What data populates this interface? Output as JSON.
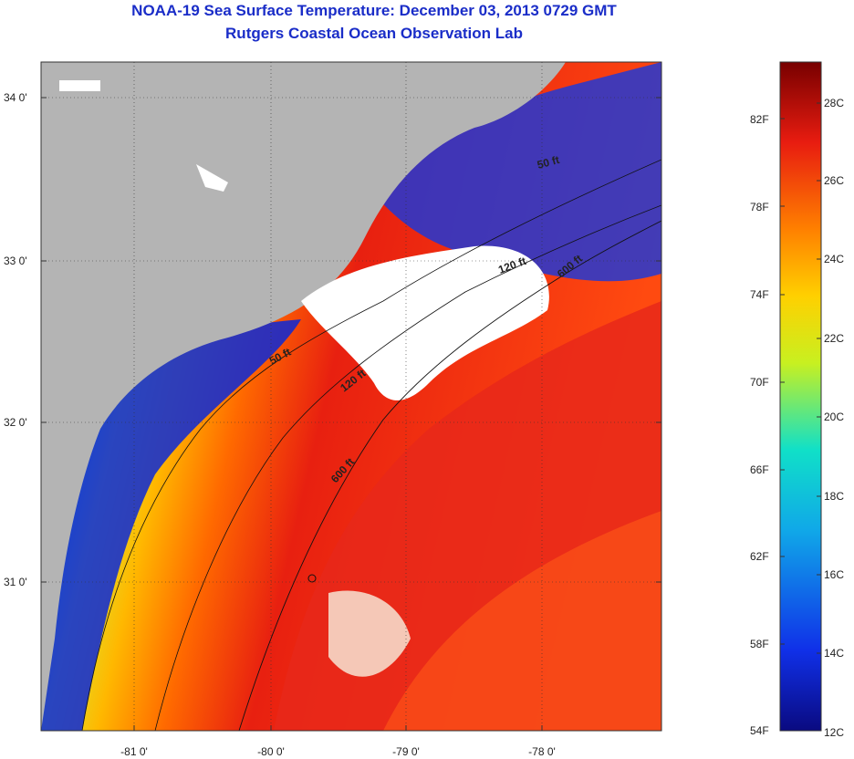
{
  "title": "NOAA-19 Sea Surface Temperature:  December 03, 2013 0729 GMT",
  "subtitle": "Rutgers Coastal Ocean Observation Lab",
  "lat_labels": [
    "34 0'",
    "33 0'",
    "32 0'",
    "31 0'"
  ],
  "lon_labels": [
    "-81 0'",
    "-80 0'",
    "-79 0'",
    "-78 0'"
  ],
  "isobaths": {
    "shelf50": "50 ft",
    "shelf120": "120 ft",
    "slope600": "600 ft",
    "north50": "50 ft",
    "north120": "120 ft",
    "north600": "600 ft"
  },
  "colorbar": {
    "fahrenheit": [
      "82F",
      "78F",
      "74F",
      "70F",
      "66F",
      "62F",
      "58F",
      "54F"
    ],
    "celsius": [
      "28C",
      "26C",
      "24C",
      "22C",
      "20C",
      "18C",
      "16C",
      "14C",
      "12C"
    ]
  },
  "colors": {
    "title": "#1a2dc8",
    "land": "#b4b4b4",
    "cloud": "#ffffff"
  }
}
